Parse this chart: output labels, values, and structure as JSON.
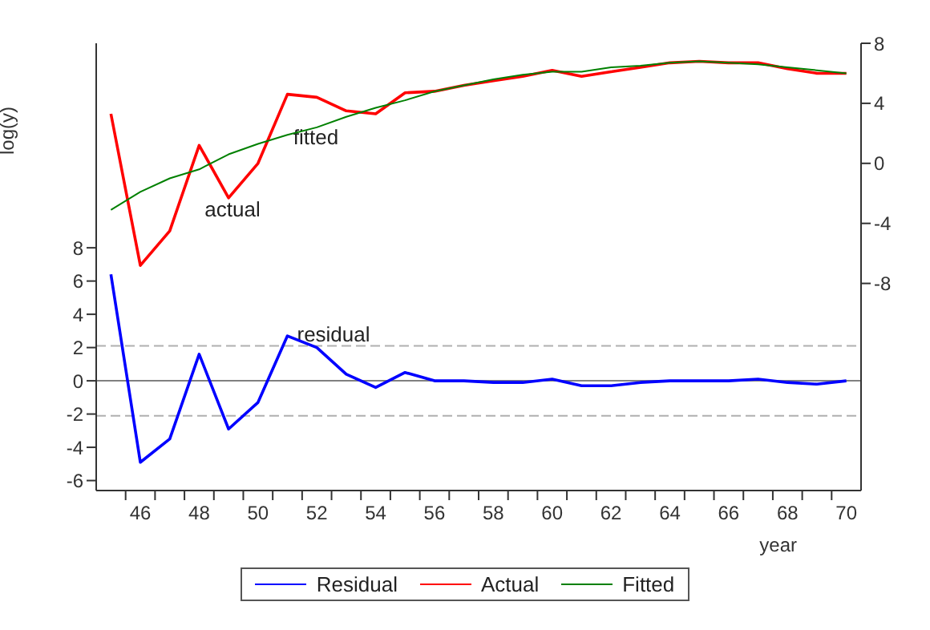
{
  "chart_data": {
    "type": "line",
    "ylabel": "log(y)",
    "xlabel": "year",
    "x": [
      45,
      46,
      47,
      48,
      49,
      50,
      51,
      52,
      53,
      54,
      55,
      56,
      57,
      58,
      59,
      60,
      61,
      62,
      63,
      64,
      65,
      66,
      67,
      68,
      69,
      70
    ],
    "series": [
      {
        "name": "Residual",
        "color": "#0000ff",
        "axis": "y",
        "values": [
          6.4,
          -4.9,
          -3.5,
          1.6,
          -2.9,
          -1.3,
          2.7,
          2.0,
          0.4,
          -0.4,
          0.5,
          0.0,
          0.0,
          -0.1,
          -0.1,
          0.1,
          -0.3,
          -0.3,
          -0.1,
          0.0,
          0.0,
          0.0,
          0.1,
          -0.1,
          -0.2,
          0.0
        ]
      },
      {
        "name": "Actual",
        "color": "#ff0000",
        "axis": "y2",
        "values": [
          3.3,
          -6.8,
          -4.5,
          1.2,
          -2.3,
          0.0,
          4.6,
          4.4,
          3.5,
          3.3,
          4.7,
          4.8,
          5.2,
          5.5,
          5.8,
          6.2,
          5.8,
          6.1,
          6.4,
          6.7,
          6.8,
          6.7,
          6.7,
          6.3,
          6.0,
          6.0
        ]
      },
      {
        "name": "Fitted",
        "color": "#008000",
        "axis": "y2",
        "values": [
          -3.1,
          -1.9,
          -1.0,
          -0.4,
          0.6,
          1.3,
          1.9,
          2.4,
          3.1,
          3.7,
          4.2,
          4.8,
          5.2,
          5.6,
          5.9,
          6.1,
          6.1,
          6.4,
          6.5,
          6.7,
          6.8,
          6.7,
          6.6,
          6.4,
          6.2,
          6.0
        ]
      }
    ],
    "xlim": [
      44.5,
      70.5
    ],
    "xticks": [
      {
        "value": 45.5,
        "label": null
      },
      46,
      {
        "value": 46.5,
        "label": null
      },
      {
        "value": 47.5,
        "label": null
      },
      48,
      {
        "value": 48.5,
        "label": null
      },
      {
        "value": 49.5,
        "label": null
      },
      50,
      {
        "value": 50.5,
        "label": null
      },
      {
        "value": 51.5,
        "label": null
      },
      52,
      {
        "value": 52.5,
        "label": null
      },
      {
        "value": 53.5,
        "label": null
      },
      54,
      {
        "value": 54.5,
        "label": null
      },
      {
        "value": 55.5,
        "label": null
      },
      56,
      {
        "value": 56.5,
        "label": null
      },
      {
        "value": 57.5,
        "label": null
      },
      58,
      {
        "value": 58.5,
        "label": null
      },
      {
        "value": 59.5,
        "label": null
      },
      60,
      {
        "value": 60.5,
        "label": null
      },
      {
        "value": 61.5,
        "label": null
      },
      62,
      {
        "value": 62.5,
        "label": null
      },
      {
        "value": 63.5,
        "label": null
      },
      64,
      {
        "value": 64.5,
        "label": null
      },
      {
        "value": 65.5,
        "label": null
      },
      66,
      {
        "value": 66.5,
        "label": null
      },
      {
        "value": 67.5,
        "label": null
      },
      68,
      {
        "value": 68.5,
        "label": null
      },
      {
        "value": 69.5,
        "label": null
      },
      70
    ],
    "ylim": [
      -6.6,
      20.3
    ],
    "yticks": [
      -6,
      -4,
      -2,
      0,
      2,
      4,
      6,
      8
    ],
    "y2lim": [
      -21.8,
      8
    ],
    "y2ticks": [
      -8,
      -4,
      0,
      4,
      8
    ],
    "ref_lines": [
      {
        "axis": "y",
        "value": 0,
        "color": "#808080",
        "line_style": "solid"
      },
      {
        "axis": "y",
        "value": 2.1,
        "color": "#b0b0b0",
        "line_style": "dashed"
      },
      {
        "axis": "y",
        "value": -2.1,
        "color": "#b0b0b0",
        "line_style": "dashed"
      }
    ],
    "annotations": [
      "fitted",
      "actual",
      "residual"
    ],
    "legend": "bottom",
    "marker": "none",
    "line_style": "solid"
  }
}
